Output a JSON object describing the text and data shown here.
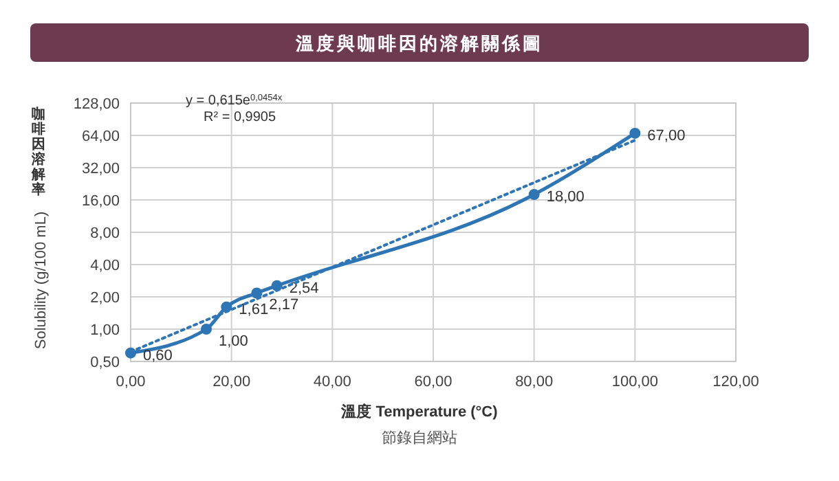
{
  "chart_data": {
    "type": "line",
    "title": "溫度與咖啡因的溶解關係圖",
    "xlabel": "溫度  Temperature (°C)",
    "ylabel": "咖啡因溶解率\nSolubility (g/100 mL)",
    "x": [
      0,
      15,
      19,
      25,
      29,
      80,
      100
    ],
    "series": [
      {
        "color": "#2e75b6",
        "values": [
          0.6,
          1,
          1.61,
          2.17,
          2.54,
          18,
          67
        ],
        "value_labels": [
          "0,60",
          "1,00",
          "1,61",
          "2,17",
          "2,54",
          "18,00",
          "67,00"
        ],
        "marker": "circle",
        "line_style": "solid"
      },
      {
        "type": "line",
        "x": [
          0,
          100
        ],
        "color": "#2e75b6",
        "values": [
          0.615,
          57.6
        ],
        "marker": "none",
        "line_style": "dotted"
      }
    ],
    "log": "y",
    "xlim": [
      0,
      120
    ],
    "ylim": [
      0.5,
      128
    ],
    "xticks": [
      {
        "value": 0,
        "label": "0,00"
      },
      {
        "value": 20,
        "label": "20,00"
      },
      {
        "value": 40,
        "label": "40,00"
      },
      {
        "value": 60,
        "label": "60,00"
      },
      {
        "value": 80,
        "label": "80,00"
      },
      {
        "value": 100,
        "label": "100,00"
      },
      {
        "value": 120,
        "label": "120,00"
      }
    ],
    "yticks": [
      {
        "value": 0.5,
        "label": "0,50"
      },
      {
        "value": 1,
        "label": "1,00"
      },
      {
        "value": 2,
        "label": "2,00"
      },
      {
        "value": 4,
        "label": "4,00"
      },
      {
        "value": 8,
        "label": "8,00"
      },
      {
        "value": 16,
        "label": "16,00"
      },
      {
        "value": 32,
        "label": "32,00"
      },
      {
        "value": 64,
        "label": "64,00"
      },
      {
        "value": 128,
        "label": "128,00"
      }
    ],
    "grid": true,
    "annotations": [
      "y = 0,615e$^{0,0454x}$",
      "R² = 0,9905",
      "節錄自網站"
    ]
  }
}
